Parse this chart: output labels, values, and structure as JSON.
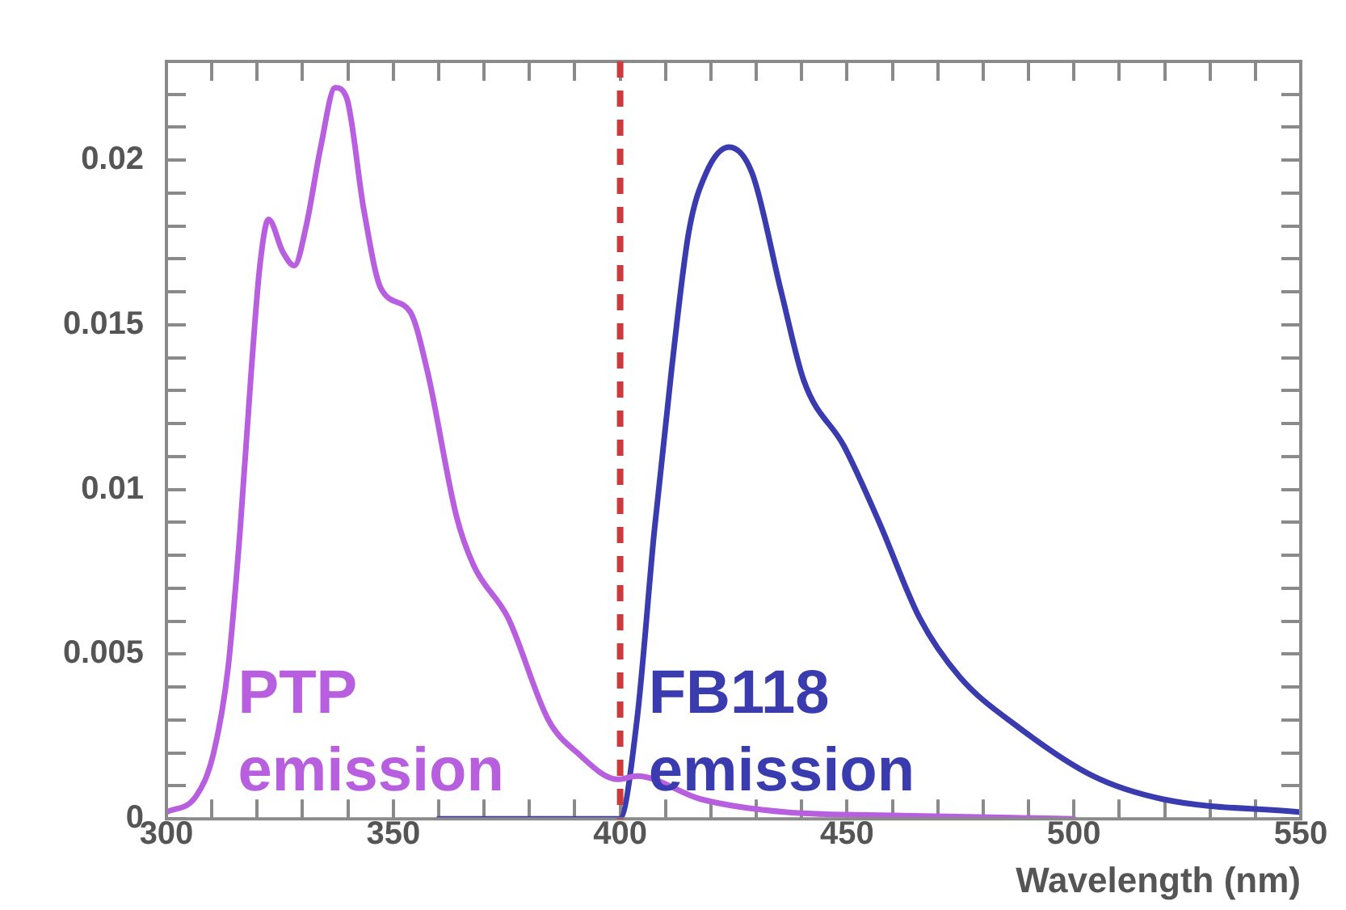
{
  "chart_data": {
    "type": "line",
    "xlabel": "Wavelength (nm)",
    "legend": false,
    "grid": false,
    "marker": "none",
    "line_style": "solid",
    "xlim": [
      300,
      550
    ],
    "xticks": [
      300,
      {
        "value": 310,
        "label": null
      },
      {
        "value": 320,
        "label": null
      },
      {
        "value": 330,
        "label": null
      },
      {
        "value": 340,
        "label": null
      },
      350,
      {
        "value": 360,
        "label": null
      },
      {
        "value": 370,
        "label": null
      },
      {
        "value": 380,
        "label": null
      },
      {
        "value": 390,
        "label": null
      },
      400,
      {
        "value": 410,
        "label": null
      },
      {
        "value": 420,
        "label": null
      },
      {
        "value": 430,
        "label": null
      },
      {
        "value": 440,
        "label": null
      },
      450,
      {
        "value": 460,
        "label": null
      },
      {
        "value": 470,
        "label": null
      },
      {
        "value": 480,
        "label": null
      },
      {
        "value": 490,
        "label": null
      },
      500,
      {
        "value": 510,
        "label": null
      },
      {
        "value": 520,
        "label": null
      },
      {
        "value": 530,
        "label": null
      },
      {
        "value": 540,
        "label": null
      },
      550
    ],
    "ylim": [
      0,
      0.023
    ],
    "yticks": [
      0,
      {
        "value": 0.001,
        "label": null
      },
      {
        "value": 0.002,
        "label": null
      },
      {
        "value": 0.003,
        "label": null
      },
      {
        "value": 0.004,
        "label": null
      },
      0.005,
      {
        "value": 0.006,
        "label": null
      },
      {
        "value": 0.007,
        "label": null
      },
      {
        "value": 0.008,
        "label": null
      },
      {
        "value": 0.009,
        "label": null
      },
      0.01,
      {
        "value": 0.011,
        "label": null
      },
      {
        "value": 0.012,
        "label": null
      },
      {
        "value": 0.013,
        "label": null
      },
      {
        "value": 0.014,
        "label": null
      },
      0.015,
      {
        "value": 0.016,
        "label": null
      },
      {
        "value": 0.017,
        "label": null
      },
      {
        "value": 0.018,
        "label": null
      },
      {
        "value": 0.019,
        "label": null
      },
      0.02,
      {
        "value": 0.021,
        "label": null
      },
      {
        "value": 0.022,
        "label": null
      }
    ],
    "ref_lines": [
      {
        "axis": "x",
        "value": 400,
        "color": "#cc3b3b",
        "line_style": "dashed"
      }
    ],
    "series": [
      {
        "name": "PTP emission",
        "color": "#b85fe0",
        "x": [
          300,
          306.6,
          310.4,
          313.6,
          316.2,
          318.7,
          320.6,
          322.5,
          325.7,
          328.2,
          330.8,
          334,
          337.2,
          339.7,
          343.5,
          347.3,
          353.7,
          357.5,
          363.9,
          367.7,
          375.3,
          384.2,
          390.6,
          399.5,
          403.7,
          417.7,
          436.8,
          462.2,
          500
        ],
        "values": [
          0.0002,
          0.0007,
          0.002,
          0.0046,
          0.0087,
          0.0136,
          0.0168,
          0.0182,
          0.0172,
          0.0168,
          0.018,
          0.0204,
          0.0222,
          0.0219,
          0.0185,
          0.0161,
          0.0154,
          0.0136,
          0.0092,
          0.0077,
          0.0061,
          0.003,
          0.002,
          0.0012,
          0.0013,
          0.0006,
          0.0002,
          0.0001,
          0
        ]
      },
      {
        "name": "FB118 emission",
        "color": "#3b3bb0",
        "x": [
          360,
          399.9,
          403.7,
          407.5,
          411.3,
          415.1,
          418.9,
          424,
          429.1,
          435.5,
          440.5,
          449.4,
          457.1,
          466,
          474.9,
          487.6,
          504.2,
          519.5,
          550
        ],
        "values": [
          0,
          0,
          0.003,
          0.0087,
          0.0136,
          0.0178,
          0.0196,
          0.0204,
          0.0196,
          0.016,
          0.0133,
          0.0113,
          0.009,
          0.0061,
          0.0043,
          0.0028,
          0.0013,
          0.0006,
          0.0002
        ]
      }
    ]
  }
}
